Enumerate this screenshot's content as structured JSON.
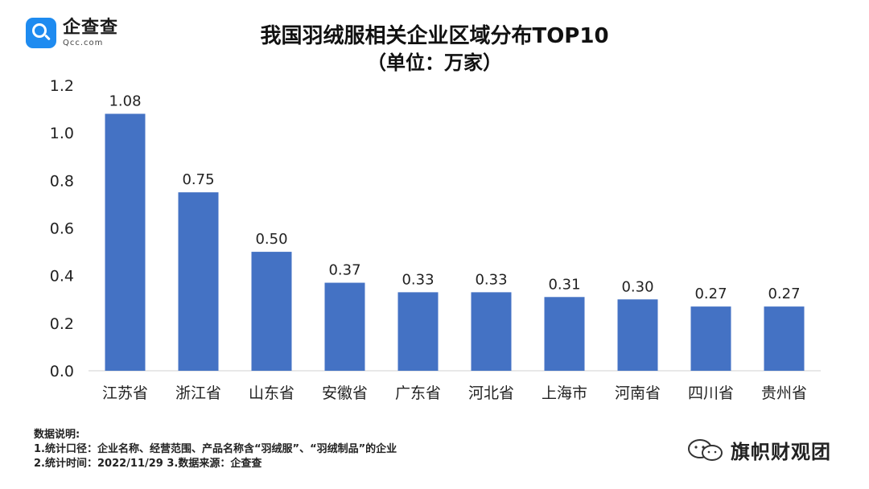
{
  "brand": {
    "logo_cn": "企查查",
    "logo_en": "Qcc.com"
  },
  "title": "我国羽绒服相关企业区域分布TOP10",
  "subtitle": "（单位：万家）",
  "chart_data": {
    "type": "bar",
    "title": "我国羽绒服相关企业区域分布TOP10",
    "subtitle": "（单位：万家）",
    "categories": [
      "江苏省",
      "浙江省",
      "山东省",
      "安徽省",
      "广东省",
      "河北省",
      "上海市",
      "河南省",
      "四川省",
      "贵州省"
    ],
    "values": [
      1.08,
      0.75,
      0.5,
      0.37,
      0.33,
      0.33,
      0.31,
      0.3,
      0.27,
      0.27
    ],
    "value_labels": [
      "1.08",
      "0.75",
      "0.50",
      "0.37",
      "0.33",
      "0.33",
      "0.31",
      "0.30",
      "0.27",
      "0.27"
    ],
    "ylim": [
      0,
      1.2
    ],
    "yticks": [
      0.0,
      0.2,
      0.4,
      0.6,
      0.8,
      1.0,
      1.2
    ],
    "ytick_labels": [
      "0.0",
      "0.2",
      "0.4",
      "0.6",
      "0.8",
      "1.0",
      "1.2"
    ],
    "bar_color": "#4472c4",
    "grid": false
  },
  "notes": {
    "heading": "数据说明:",
    "line1": "1.统计口径：企业名称、经营范围、产品名称含“羽绒服”、“羽绒制品”的企业",
    "line2": "2.统计时间：2022/11/29      3.数据来源：企查查"
  },
  "watermark": {
    "text": "旗帜财观团",
    "icon": "wechat-icon"
  }
}
